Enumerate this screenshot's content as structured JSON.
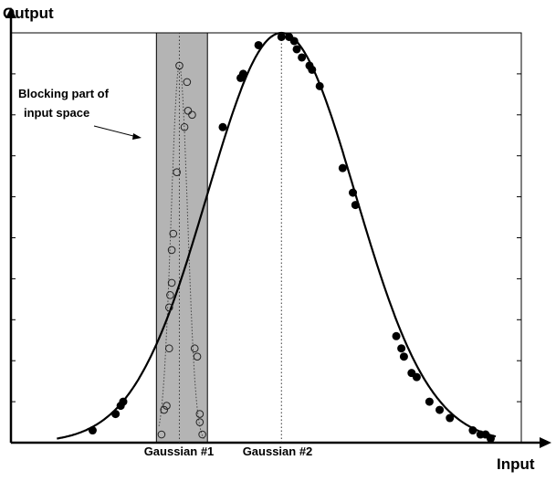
{
  "chart_data": {
    "type": "scatter",
    "title": "",
    "xlabel": "Input",
    "ylabel": "Output",
    "xlim": [
      0,
      100
    ],
    "ylim": [
      0,
      1
    ],
    "grid": false,
    "annotation": {
      "lines": [
        "Blocking part of",
        "input space"
      ]
    },
    "gaussian_labels": [
      "Gaussian #1",
      "Gaussian #2"
    ],
    "gaussian_centers": [
      33,
      53
    ],
    "blocked_region": [
      28.5,
      38.5
    ],
    "curve": {
      "name": "",
      "mu": 53,
      "sigma": 14.5,
      "color": "#000000"
    },
    "filled_points": {
      "x": [
        16,
        20.5,
        21.5,
        22,
        41.5,
        45,
        45.5,
        48.5,
        53,
        54.5,
        55.5,
        56,
        57,
        58.5,
        59,
        60.5,
        65,
        67,
        67.5,
        75.5,
        76.5,
        77,
        78.5,
        79.5,
        82,
        84,
        86,
        90.5,
        92,
        93,
        94
      ],
      "y": [
        0.03,
        0.07,
        0.09,
        0.1,
        0.77,
        0.89,
        0.9,
        0.97,
        0.99,
        0.99,
        0.98,
        0.96,
        0.94,
        0.92,
        0.91,
        0.87,
        0.67,
        0.61,
        0.58,
        0.26,
        0.23,
        0.21,
        0.17,
        0.16,
        0.1,
        0.08,
        0.06,
        0.03,
        0.02,
        0.02,
        0.01
      ]
    },
    "open_points": {
      "x": [
        29.5,
        30,
        30.5,
        31,
        31,
        31.2,
        31.5,
        31.5,
        31.8,
        32.5,
        33,
        34,
        34.5,
        34.7,
        35.5,
        36,
        36.5,
        37,
        37,
        37.5
      ],
      "y": [
        0.02,
        0.08,
        0.09,
        0.23,
        0.33,
        0.36,
        0.39,
        0.47,
        0.51,
        0.66,
        0.92,
        0.77,
        0.88,
        0.81,
        0.8,
        0.23,
        0.21,
        0.07,
        0.05,
        0.02
      ]
    }
  }
}
